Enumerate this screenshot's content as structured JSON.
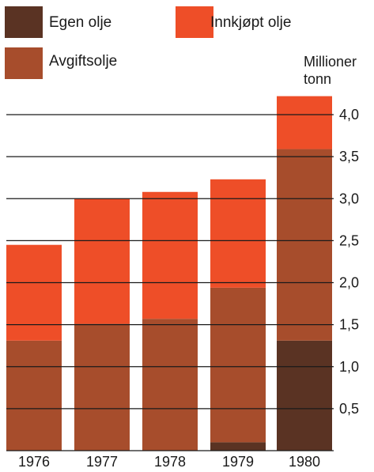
{
  "chart_data": {
    "type": "bar",
    "stacked": true,
    "categories": [
      "1976",
      "1977",
      "1978",
      "1979",
      "1980"
    ],
    "series": [
      {
        "name": "Egen olje",
        "color": "#5a3323",
        "values": [
          0,
          0,
          0,
          0.1,
          1.31
        ]
      },
      {
        "name": "Avgiftsolje",
        "color": "#a74d2c",
        "values": [
          1.31,
          1.51,
          1.57,
          1.84,
          2.28
        ]
      },
      {
        "name": "Innkjøpt olje",
        "color": "#ee4e28",
        "values": [
          1.14,
          1.49,
          1.51,
          1.29,
          0.63
        ]
      }
    ],
    "ylabel": "Millioner tonn",
    "ylabel_lines": [
      "Millioner",
      "tonn"
    ],
    "ylim": [
      0,
      4.25
    ],
    "yticks": [
      0.5,
      1.0,
      1.5,
      2.0,
      2.5,
      3.0,
      3.5,
      4.0
    ],
    "ytick_labels": [
      "0,5",
      "1,0",
      "1,5",
      "2,0",
      "2,5",
      "3,0",
      "3,5",
      "4,0"
    ],
    "grid": true,
    "legend_position": "top"
  }
}
